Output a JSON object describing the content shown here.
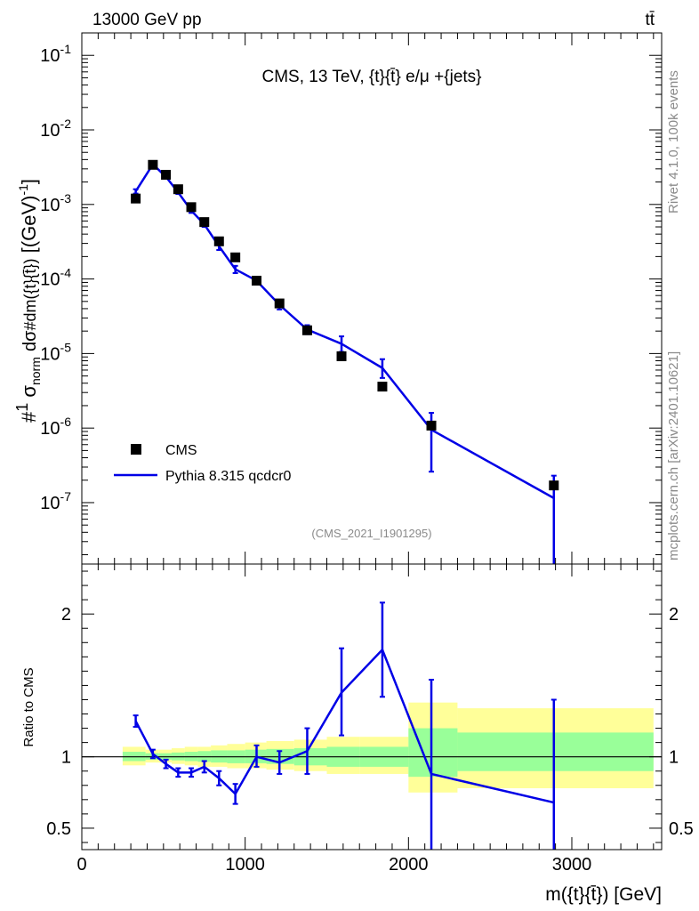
{
  "header": {
    "left": "13000 GeV pp",
    "right": "tt̄"
  },
  "side_labels": {
    "rivet": "Rivet 4.1.0,  100k events",
    "mcplots": "mcplots.cern.ch [arXiv:2401.10621]"
  },
  "chart_data": [
    {
      "type": "scatter",
      "panel": "main",
      "title": "CMS, 13 TeV, {t}{t̄} e/μ +{jets}",
      "ylabel": "#1/σ_norm #dσ/dm({t}{t̄}) [(GeV)^-1]",
      "ylabel_parts": {
        "num": "#",
        "one": "1",
        "sigma": "σ",
        "sub": "norm",
        "dsigma": "dσ",
        "dm": "#dm({t}{t̄})",
        "unit": "[(GeV)",
        "exp": "-1",
        "close": "]"
      },
      "yscale": "log",
      "ylim": [
        1.5e-08,
        0.2
      ],
      "xlim": [
        0,
        3550
      ],
      "yticks": [
        {
          "v": 1e-07,
          "base": "10",
          "exp": "-7"
        },
        {
          "v": 1e-06,
          "base": "10",
          "exp": "-6"
        },
        {
          "v": 1e-05,
          "base": "10",
          "exp": "-5"
        },
        {
          "v": 0.0001,
          "base": "10",
          "exp": "-4"
        },
        {
          "v": 0.001,
          "base": "10",
          "exp": "-3"
        },
        {
          "v": 0.01,
          "base": "10",
          "exp": "-2"
        },
        {
          "v": 0.1,
          "base": "10",
          "exp": "-1"
        }
      ],
      "watermark": "(CMS_2021_I1901295)",
      "legend": {
        "position": "bottom-left",
        "entries": [
          {
            "label": "CMS",
            "style": "marker",
            "color": "#000000"
          },
          {
            "label": "Pythia 8.315 qcdcr0",
            "style": "line",
            "color": "#0000e6"
          }
        ]
      },
      "series": [
        {
          "name": "CMS",
          "color": "#000000",
          "x": [
            330,
            435,
            515,
            590,
            670,
            750,
            840,
            940,
            1070,
            1210,
            1380,
            1590,
            1840,
            2140,
            2890
          ],
          "y": [
            0.0012,
            0.0034,
            0.0025,
            0.0016,
            0.00092,
            0.00058,
            0.00032,
            0.000195,
            9.5e-05,
            4.7e-05,
            2.05e-05,
            9.2e-06,
            3.6e-06,
            1.08e-06,
            1.7e-07
          ]
        },
        {
          "name": "Pythia 8.315 qcdcr0",
          "color": "#0000e6",
          "x": [
            330,
            435,
            515,
            590,
            670,
            750,
            840,
            940,
            1070,
            1210,
            1380,
            1590,
            1840,
            2140,
            2890
          ],
          "y": [
            0.0015,
            0.00345,
            0.00235,
            0.00145,
            0.00083,
            0.00054,
            0.000275,
            0.000135,
            9.5e-05,
            4.5e-05,
            2.1e-05,
            1.35e-05,
            6.4e-06,
            9.5e-07,
            1.15e-07
          ],
          "yerr_low": [
            0.0014,
            0.0033,
            0.00225,
            0.00138,
            0.00077,
            0.0005,
            0.000245,
            0.00012,
            8.8e-05,
            3.9e-05,
            1.82e-05,
            1.05e-05,
            4.7e-06,
            2.6e-07,
            1.2e-08
          ],
          "yerr_high": [
            0.0016,
            0.0036,
            0.00245,
            0.00152,
            0.00089,
            0.00058,
            0.000305,
            0.00015,
            0.000102,
            5.1e-05,
            2.4e-05,
            1.7e-05,
            8.4e-06,
            1.6e-06,
            2.3e-07
          ]
        }
      ]
    },
    {
      "type": "line",
      "panel": "ratio",
      "ylabel": "Ratio to CMS",
      "xlabel": "m({t}{t̄}) [GeV]",
      "ylim": [
        0.35,
        2.35
      ],
      "xlim": [
        0,
        3550
      ],
      "yticks": [
        0.5,
        1,
        2
      ],
      "ytick_labels": [
        "0.5",
        "1",
        "2"
      ],
      "xticks": [
        0,
        1000,
        2000,
        3000
      ],
      "xtick_labels": [
        "0",
        "1000",
        "2000",
        "3000"
      ],
      "reference_line": 1,
      "bands": {
        "edges": [
          250,
          390,
          470,
          550,
          630,
          710,
          790,
          890,
          1000,
          1130,
          1300,
          1500,
          1700,
          2000,
          2300,
          3500
        ],
        "yellow_low": [
          0.94,
          0.96,
          0.96,
          0.95,
          0.94,
          0.93,
          0.93,
          0.92,
          0.92,
          0.91,
          0.9,
          0.88,
          0.88,
          0.75,
          0.78
        ],
        "yellow_high": [
          1.07,
          1.05,
          1.05,
          1.06,
          1.07,
          1.07,
          1.08,
          1.09,
          1.1,
          1.11,
          1.12,
          1.14,
          1.14,
          1.38,
          1.34
        ],
        "green_low": [
          0.97,
          0.98,
          0.98,
          0.975,
          0.97,
          0.965,
          0.96,
          0.955,
          0.955,
          0.95,
          0.94,
          0.93,
          0.93,
          0.86,
          0.9
        ],
        "green_high": [
          1.035,
          1.025,
          1.025,
          1.03,
          1.035,
          1.04,
          1.045,
          1.045,
          1.05,
          1.055,
          1.06,
          1.07,
          1.07,
          1.2,
          1.17
        ],
        "yellow_color": "#ffff99",
        "green_color": "#99ff99"
      },
      "series": [
        {
          "name": "Pythia 8.315 qcdcr0",
          "color": "#0000e6",
          "x": [
            330,
            435,
            515,
            590,
            670,
            750,
            840,
            940,
            1070,
            1210,
            1380,
            1590,
            1840,
            2140,
            2890
          ],
          "y": [
            1.25,
            1.02,
            0.95,
            0.89,
            0.89,
            0.93,
            0.85,
            0.74,
            1.0,
            0.96,
            1.04,
            1.45,
            1.75,
            0.88,
            0.68
          ],
          "yerr_low": [
            1.21,
            0.99,
            0.92,
            0.86,
            0.86,
            0.89,
            0.8,
            0.67,
            0.93,
            0.88,
            0.88,
            1.15,
            1.42,
            0.2,
            0.2
          ],
          "yerr_high": [
            1.29,
            1.05,
            0.98,
            0.92,
            0.92,
            0.97,
            0.9,
            0.81,
            1.08,
            1.04,
            1.2,
            1.76,
            2.08,
            1.54,
            1.4
          ]
        }
      ]
    }
  ]
}
